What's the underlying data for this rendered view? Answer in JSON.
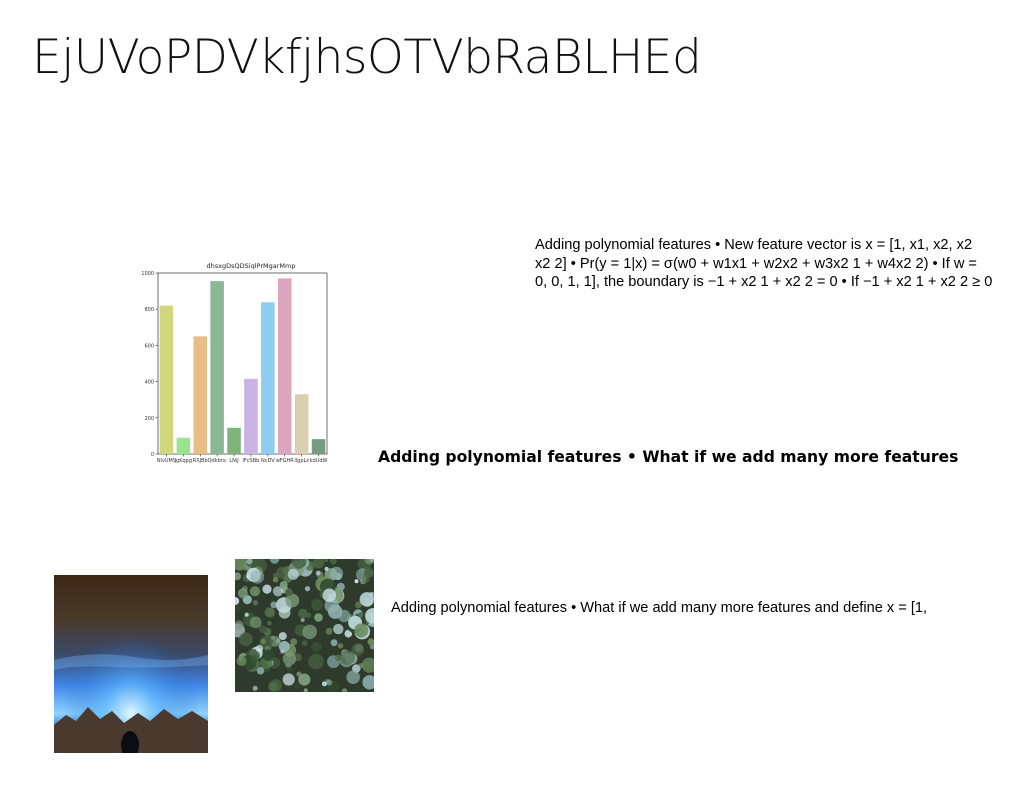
{
  "slide": {
    "title": "EjUVoPDVkfjhsOTVbRaBLHEd",
    "text_block_1": [
      "Adding polynomial features • New feature vector is x = [1, x1, x2, x2",
      "x2 2] • Pr(y = 1|x) = σ(w0 + w1x1 + w2x2 + w3x2 1 + w4x2 2) • If w =",
      "0, 0, 1, 1], the boundary is −1 + x2 1 + x2 2 = 0 • If −1 + x2 1 + x2 2 ≥ 0"
    ],
    "text_block_2": "Adding polynomial features • What if we add many more features",
    "text_block_3": "Adding polynomial features • What if we add many more features and define x = [1,"
  },
  "chart_data": {
    "type": "bar",
    "title": "dhsxgDsQDSiqlPrMgarMmp",
    "categories": [
      "NlvUMS",
      "jgKqpg",
      "RXJBb",
      "Qdkbnc",
      "LNiJ",
      "lFcSBb",
      "NcDV",
      "wFGHR",
      "llgpLz",
      "kdUdW"
    ],
    "values": [
      820,
      90,
      650,
      955,
      145,
      415,
      838,
      970,
      330,
      82
    ],
    "colors": [
      "#d2d67d",
      "#9be38f",
      "#e8be86",
      "#88b894",
      "#7fb47a",
      "#c8b3e4",
      "#8ecdf0",
      "#dba5bd",
      "#dacfb1",
      "#779b7f"
    ],
    "ylim": [
      0,
      1000
    ],
    "yticks": [
      0,
      200,
      400,
      600,
      800,
      1000
    ],
    "xlabel": "",
    "ylabel": "",
    "grid": false
  }
}
